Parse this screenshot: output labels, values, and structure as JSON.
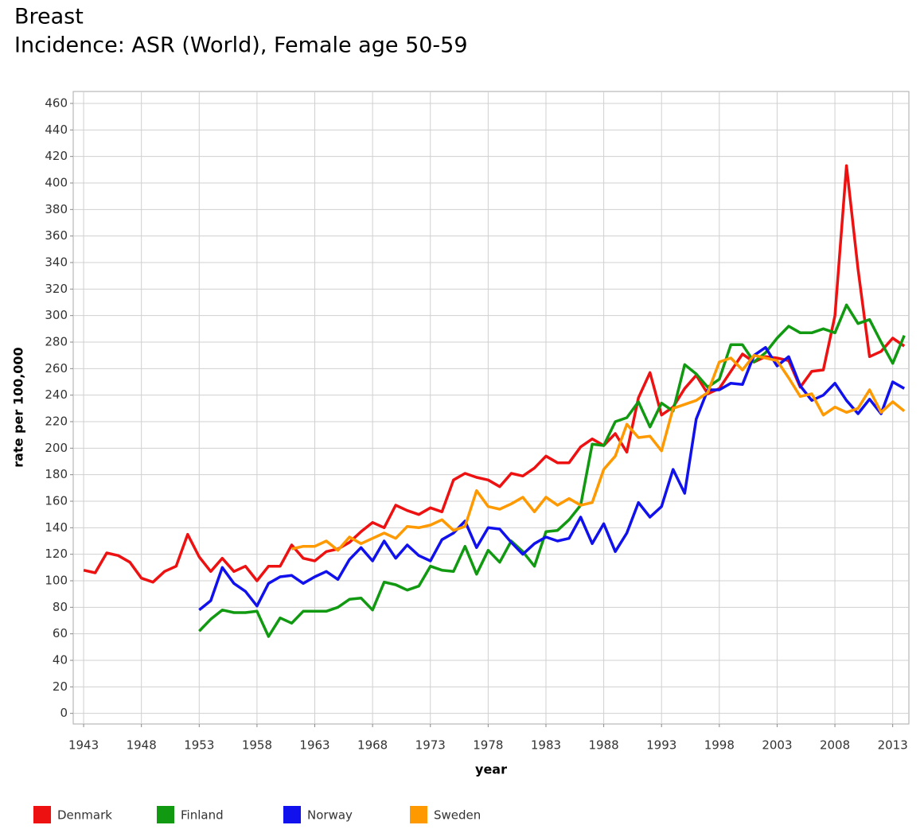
{
  "chart_data": {
    "type": "line",
    "title": "Breast",
    "subtitle": "Incidence: ASR (World), Female age 50-59",
    "x_label": "year",
    "y_label": "rate per 100,000",
    "x": [
      1943,
      1944,
      1945,
      1946,
      1947,
      1948,
      1949,
      1950,
      1951,
      1952,
      1953,
      1954,
      1955,
      1956,
      1957,
      1958,
      1959,
      1960,
      1961,
      1962,
      1963,
      1964,
      1965,
      1966,
      1967,
      1968,
      1969,
      1970,
      1971,
      1972,
      1973,
      1974,
      1975,
      1976,
      1977,
      1978,
      1979,
      1980,
      1981,
      1982,
      1983,
      1984,
      1985,
      1986,
      1987,
      1988,
      1989,
      1990,
      1991,
      1992,
      1993,
      1994,
      1995,
      1996,
      1997,
      1998,
      1999,
      2000,
      2001,
      2002,
      2003,
      2004,
      2005,
      2006,
      2007,
      2008,
      2009,
      2010,
      2011,
      2012,
      2013,
      2014
    ],
    "series": [
      {
        "name": "Denmark",
        "color": "#ee1111",
        "values": [
          108,
          106,
          121,
          119,
          114,
          102,
          99,
          107,
          111,
          135,
          118,
          107,
          117,
          107,
          111,
          100,
          111,
          111,
          127,
          117,
          115,
          122,
          124,
          129,
          137,
          144,
          140,
          157,
          153,
          150,
          155,
          152,
          176,
          181,
          178,
          176,
          171,
          181,
          179,
          185,
          194,
          189,
          189,
          201,
          207,
          202,
          211,
          197,
          238,
          257,
          225,
          231,
          245,
          255,
          241,
          245,
          258,
          271,
          265,
          269,
          268,
          266,
          246,
          258,
          259,
          300,
          413,
          335,
          269,
          273,
          283,
          277
        ]
      },
      {
        "name": "Finland",
        "color": "#119911",
        "values": [
          null,
          null,
          null,
          null,
          null,
          null,
          null,
          null,
          null,
          null,
          62,
          71,
          78,
          76,
          76,
          77,
          58,
          72,
          68,
          77,
          77,
          77,
          80,
          86,
          87,
          78,
          99,
          97,
          93,
          96,
          111,
          108,
          107,
          126,
          105,
          123,
          114,
          130,
          122,
          111,
          137,
          138,
          146,
          157,
          203,
          202,
          220,
          223,
          235,
          216,
          234,
          228,
          263,
          256,
          246,
          252,
          278,
          278,
          265,
          272,
          283,
          292,
          287,
          287,
          290,
          287,
          308,
          294,
          297,
          280,
          264,
          285
        ]
      },
      {
        "name": "Norway",
        "color": "#1111ee",
        "values": [
          null,
          null,
          null,
          null,
          null,
          null,
          null,
          null,
          null,
          null,
          78,
          85,
          110,
          98,
          92,
          81,
          98,
          103,
          104,
          98,
          103,
          107,
          101,
          116,
          125,
          115,
          130,
          117,
          127,
          119,
          115,
          131,
          136,
          145,
          125,
          140,
          139,
          129,
          120,
          128,
          133,
          130,
          132,
          148,
          128,
          143,
          122,
          136,
          159,
          148,
          156,
          184,
          166,
          222,
          244,
          244,
          249,
          248,
          270,
          276,
          262,
          269,
          247,
          236,
          240,
          249,
          236,
          226,
          237,
          226,
          250,
          245
        ]
      },
      {
        "name": "Sweden",
        "color": "#ff9900",
        "values": [
          null,
          null,
          null,
          null,
          null,
          null,
          null,
          null,
          null,
          null,
          null,
          null,
          null,
          null,
          null,
          null,
          null,
          null,
          124,
          126,
          126,
          130,
          123,
          133,
          128,
          132,
          136,
          132,
          141,
          140,
          142,
          146,
          138,
          141,
          168,
          156,
          154,
          158,
          163,
          152,
          163,
          157,
          162,
          157,
          159,
          184,
          194,
          218,
          208,
          209,
          198,
          230,
          233,
          236,
          242,
          265,
          268,
          259,
          270,
          268,
          266,
          253,
          239,
          241,
          225,
          231,
          227,
          230,
          244,
          227,
          235,
          228
        ]
      }
    ],
    "xlim": [
      1942.1,
      2014.4
    ],
    "xticks": [
      1943,
      1948,
      1953,
      1958,
      1963,
      1968,
      1973,
      1978,
      1983,
      1988,
      1993,
      1998,
      2003,
      2008,
      2013
    ],
    "ylim": [
      -8,
      469
    ],
    "yticks": [
      0,
      20,
      40,
      60,
      80,
      100,
      120,
      140,
      160,
      180,
      200,
      220,
      240,
      260,
      280,
      300,
      320,
      340,
      360,
      380,
      400,
      420,
      440,
      460
    ],
    "grid": true
  }
}
